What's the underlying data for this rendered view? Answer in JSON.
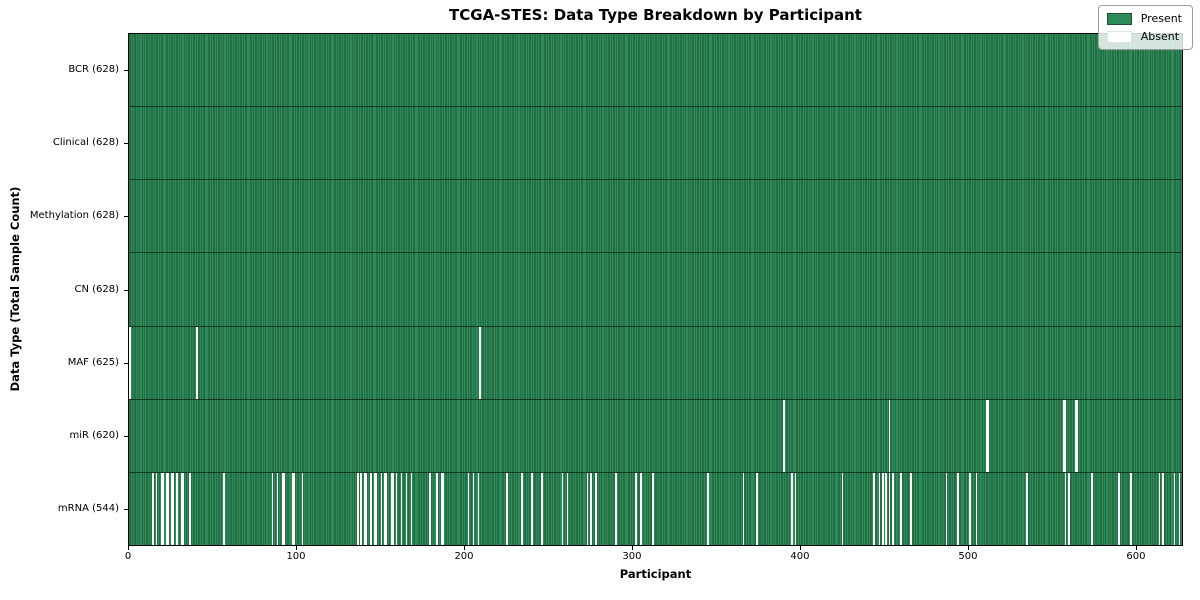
{
  "chart_data": {
    "type": "heatmap",
    "title": "TCGA-STES: Data Type Breakdown by Participant",
    "xlabel": "Participant",
    "ylabel": "Data Type (Total Sample Count)",
    "x_ticks": [
      0,
      100,
      200,
      300,
      400,
      500,
      600
    ],
    "x_range": [
      0,
      628
    ],
    "n_participants": 628,
    "grid": false,
    "legend_position": "upper right",
    "present_color": "#2e8b57",
    "absent_color": "#ffffff",
    "legend": [
      {
        "key": "present",
        "label": "Present",
        "color": "#2e8b57"
      },
      {
        "key": "absent",
        "label": "Absent",
        "color": "#ffffff"
      }
    ],
    "series": [
      {
        "name": "BCR",
        "label": "BCR (628)",
        "present_count": 628,
        "absent_participants": []
      },
      {
        "name": "Clinical",
        "label": "Clinical (628)",
        "present_count": 628,
        "absent_participants": []
      },
      {
        "name": "Methylation",
        "label": "Methylation (628)",
        "present_count": 628,
        "absent_participants": []
      },
      {
        "name": "CN",
        "label": "CN (628)",
        "present_count": 628,
        "absent_participants": []
      },
      {
        "name": "MAF",
        "label": "MAF (625)",
        "present_count": 625,
        "absent_participants": [
          0,
          40,
          209
        ]
      },
      {
        "name": "miR",
        "label": "miR (620)",
        "present_count": 620,
        "absent_participants": [
          390,
          453,
          511,
          512,
          557,
          558,
          564,
          565
        ]
      },
      {
        "name": "mRNA",
        "label": "mRNA (544)",
        "present_count": 544,
        "absent_participants": [
          14,
          16,
          19,
          20,
          22,
          23,
          25,
          26,
          28,
          31,
          32,
          36,
          56,
          85,
          88,
          91,
          92,
          97,
          98,
          103,
          136,
          138,
          140,
          141,
          144,
          146,
          147,
          150,
          152,
          153,
          156,
          157,
          159,
          162,
          165,
          168,
          179,
          183,
          186,
          187,
          202,
          205,
          208,
          225,
          234,
          240,
          246,
          258,
          261,
          273,
          275,
          278,
          290,
          302,
          305,
          312,
          345,
          366,
          374,
          395,
          397,
          425,
          444,
          447,
          449,
          451,
          453,
          455,
          460,
          466,
          487,
          494,
          501,
          505,
          535,
          558,
          560,
          574,
          590,
          597,
          614,
          616,
          623,
          626
        ]
      }
    ]
  }
}
